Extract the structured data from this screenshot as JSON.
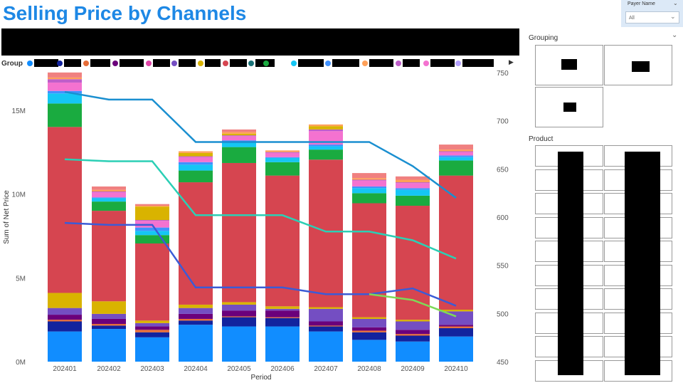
{
  "title": "Selling Price by Channels",
  "payer_slicer": {
    "label": "Payer Name",
    "value": "All"
  },
  "legend": {
    "title": "Group",
    "colors": [
      "#118dff",
      "#12239e",
      "#e66c37",
      "#6b007b",
      "#e044a7",
      "#744ec2",
      "#d9b300",
      "#d64550",
      "#197278",
      "#1aab40",
      "#15c6f4",
      "#4092ff",
      "#ffa058",
      "#be5dc9",
      "#f472d0",
      "#b5a1ff"
    ]
  },
  "grouping": {
    "title": "Grouping"
  },
  "product": {
    "title": "Product"
  },
  "chart_data": {
    "type": "bar",
    "stacked": true,
    "categories": [
      "202401",
      "202402",
      "202403",
      "202404",
      "202405",
      "202406",
      "202407",
      "202408",
      "202409",
      "202410"
    ],
    "xlabel": "Period",
    "ylabel": "Sum of Net Price",
    "y_ticks": [
      "0M",
      "5M",
      "10M",
      "15M"
    ],
    "y2_ticks": [
      "450",
      "500",
      "550",
      "600",
      "650",
      "700",
      "750"
    ],
    "ylim": [
      0,
      17200000
    ],
    "y2lim": [
      450,
      755
    ],
    "grid": false,
    "series": [
      {
        "color": "#118dff",
        "values": [
          1.8,
          1.95,
          1.45,
          2.2,
          2.1,
          2.1,
          1.8,
          1.3,
          1.2,
          1.5
        ]
      },
      {
        "color": "#12239e",
        "values": [
          0.6,
          0.2,
          0.3,
          0.25,
          0.55,
          0.5,
          0.3,
          0.45,
          0.35,
          0.5
        ]
      },
      {
        "color": "#e66c37",
        "values": [
          0.1,
          0.1,
          0.15,
          0.1,
          0.05,
          0.05,
          0.05,
          0.1,
          0.1,
          0.1
        ]
      },
      {
        "color": "#6b007b",
        "values": [
          0.3,
          0.3,
          0.2,
          0.3,
          0.35,
          0.4,
          0.25,
          0.2,
          0.25,
          0.1
        ]
      },
      {
        "color": "#744ec2",
        "values": [
          0.4,
          0.3,
          0.2,
          0.35,
          0.35,
          0.1,
          0.75,
          0.5,
          0.5,
          0.8
        ]
      },
      {
        "color": "#d9b300",
        "values": [
          0.9,
          0.75,
          0.15,
          0.2,
          0.15,
          0.15,
          0.1,
          0.1,
          0.1,
          0.1
        ]
      },
      {
        "color": "#d64550",
        "values": [
          9.9,
          5.4,
          4.6,
          7.3,
          8.3,
          7.8,
          8.8,
          6.8,
          6.8,
          8.0
        ]
      },
      {
        "color": "#1aab40",
        "values": [
          1.4,
          0.55,
          0.5,
          0.7,
          0.95,
          0.8,
          0.6,
          0.6,
          0.6,
          0.9
        ]
      },
      {
        "color": "#15c6f4",
        "values": [
          0.6,
          0.2,
          0.25,
          0.35,
          0.3,
          0.25,
          0.2,
          0.3,
          0.35,
          0.2
        ]
      },
      {
        "color": "#4092ff",
        "values": [
          0.15,
          0.05,
          0.2,
          0.15,
          0.1,
          0.05,
          0.1,
          0.1,
          0.1,
          0.1
        ]
      },
      {
        "color": "#f472d0",
        "values": [
          0.5,
          0.3,
          0.4,
          0.3,
          0.25,
          0.25,
          0.8,
          0.35,
          0.3,
          0.2
        ]
      },
      {
        "color": "#be5dc9",
        "values": [
          0.2,
          0.05,
          0.05,
          0.05,
          0.05,
          0.05,
          0.1,
          0.05,
          0.05,
          0.05
        ]
      },
      {
        "color": "#d9b300",
        "values": [
          0.0,
          0.0,
          0.8,
          0.2,
          0.1,
          0.0,
          0.2,
          0.0,
          0.0,
          0.0
        ]
      },
      {
        "color": "#ffa058",
        "values": [
          0.1,
          0.1,
          0.05,
          0.1,
          0.1,
          0.1,
          0.1,
          0.1,
          0.15,
          0.1
        ]
      },
      {
        "color": "#f08080",
        "values": [
          0.3,
          0.2,
          0.1,
          0.0,
          0.15,
          0.0,
          0.0,
          0.3,
          0.2,
          0.3
        ]
      }
    ],
    "lines": [
      {
        "color": "#1a8fd0",
        "values": [
          730,
          722,
          722,
          678,
          678,
          678,
          678,
          678,
          653,
          620
        ]
      },
      {
        "color": "#2bcfb5",
        "values": [
          660,
          658,
          658,
          602,
          602,
          602,
          585,
          585,
          576,
          557
        ]
      },
      {
        "color": "#3b5bd6",
        "values": [
          594,
          592,
          592,
          527,
          527,
          527,
          520,
          520,
          526,
          508
        ]
      },
      {
        "color": "#7ed957",
        "values": [
          null,
          null,
          null,
          null,
          null,
          null,
          null,
          520,
          514,
          497
        ]
      }
    ]
  }
}
